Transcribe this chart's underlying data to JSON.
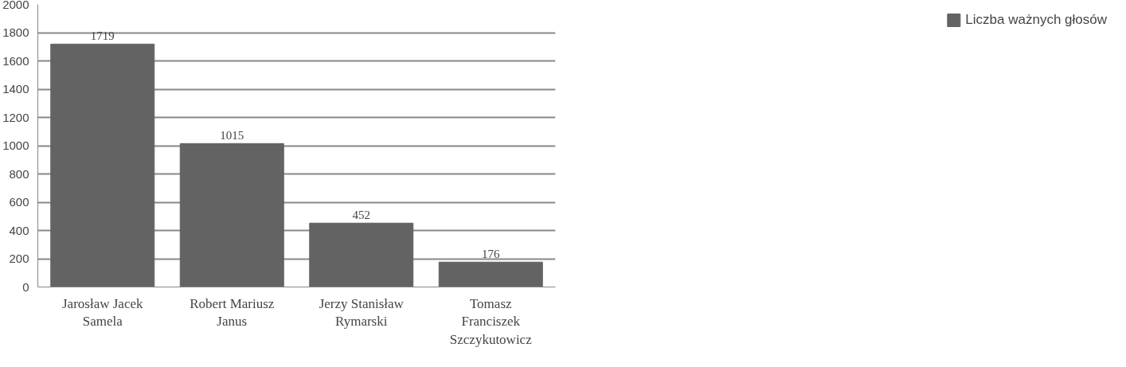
{
  "chart_data": {
    "type": "bar",
    "categories": [
      "Jarosław Jacek Samela",
      "Robert Mariusz Janus",
      "Jerzy Stanisław Rymarski",
      "Tomasz Franciszek Szczykutowicz"
    ],
    "series": [
      {
        "name": "Liczba ważnych głosów",
        "color": "#636363",
        "values": [
          1719,
          1015,
          452,
          176
        ]
      }
    ],
    "ylim": [
      0,
      2000
    ],
    "yticks": [
      0,
      200,
      400,
      600,
      800,
      1000,
      1200,
      1400,
      1600,
      1800,
      2000
    ],
    "grid": "y",
    "legend": "right",
    "data_labels": true
  }
}
